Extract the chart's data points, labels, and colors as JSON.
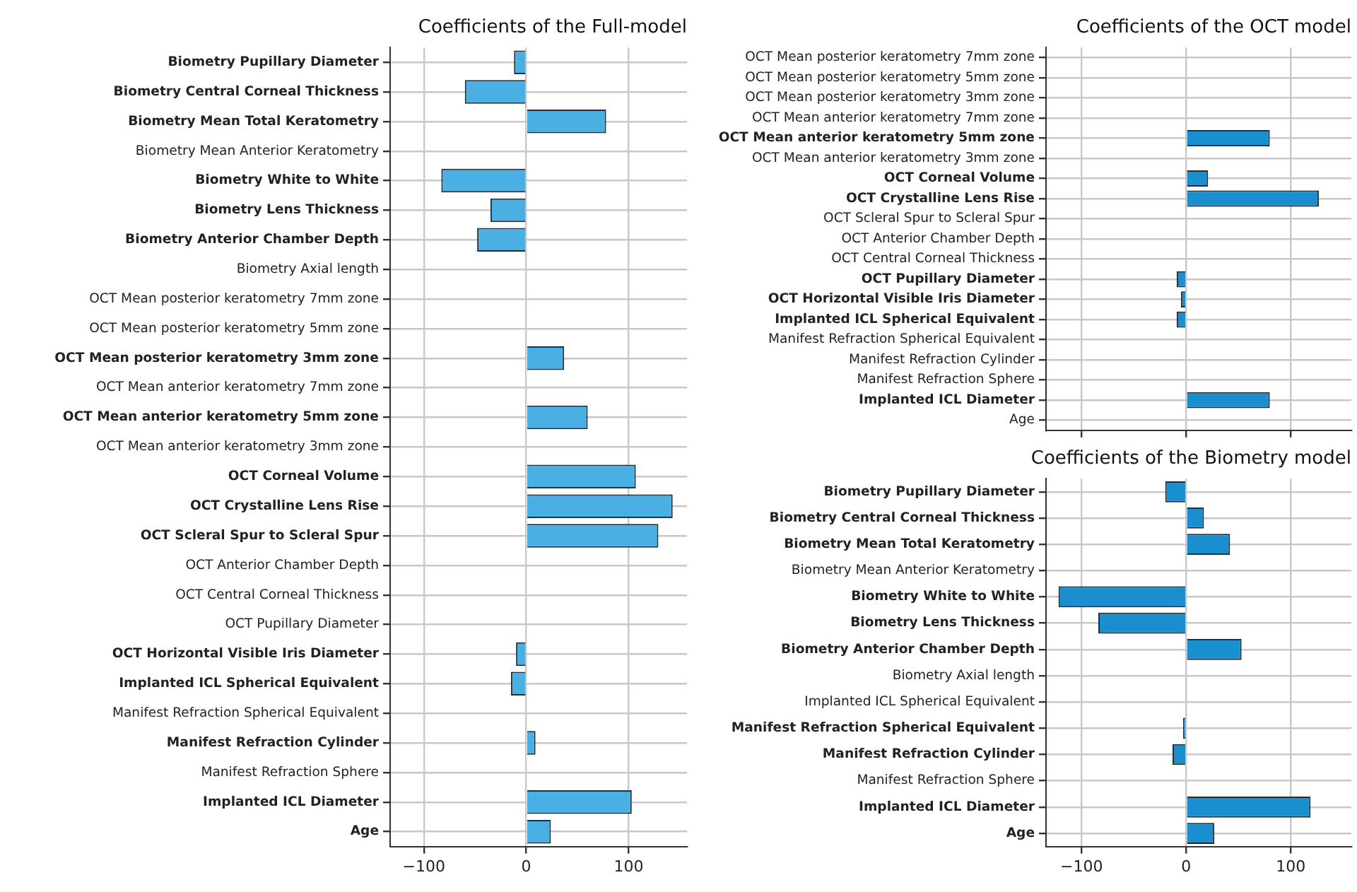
{
  "chart_data": [
    {
      "type": "bar",
      "orientation": "horizontal",
      "title": "Coefficients of the Full-model",
      "categories": [
        "Biometry Pupillary Diameter",
        "Biometry Central Corneal Thickness",
        "Biometry Mean Total Keratometry",
        "Biometry Mean Anterior Keratometry",
        "Biometry White to White",
        "Biometry Lens Thickness",
        "Biometry Anterior Chamber Depth",
        "Biometry Axial length",
        "OCT Mean posterior keratometry 7mm zone",
        "OCT Mean posterior keratometry 5mm zone",
        "OCT Mean posterior keratometry 3mm zone",
        "OCT Mean anterior keratometry 7mm zone",
        "OCT Mean anterior keratometry 5mm zone",
        "OCT Mean anterior keratometry 3mm zone",
        "OCT Corneal Volume",
        "OCT Crystalline Lens Rise",
        "OCT Scleral Spur to Scleral Spur",
        "OCT Anterior Chamber Depth",
        "OCT Central Corneal Thickness",
        "OCT Pupillary Diameter",
        "OCT Horizontal Visible Iris Diameter",
        "Implanted ICL Spherical Equivalent",
        "Manifest Refraction Spherical Equivalent",
        "Manifest Refraction Cylinder",
        "Manifest Refraction Sphere",
        "Implanted ICL Diameter",
        "Age"
      ],
      "values": [
        -12,
        -60,
        78,
        0,
        -83,
        -35,
        -48,
        0,
        0,
        0,
        37,
        0,
        60,
        0,
        107,
        143,
        129,
        0,
        0,
        0,
        -10,
        -15,
        0,
        9,
        0,
        103,
        24
      ],
      "color": "#4ab0e4",
      "xlim": [
        -133,
        157
      ],
      "xticks": [
        -100,
        0,
        100
      ],
      "grid": true
    },
    {
      "type": "bar",
      "orientation": "horizontal",
      "title": "Coefficients of the OCT model",
      "categories": [
        "OCT Mean posterior keratometry 7mm zone",
        "OCT Mean posterior keratometry 5mm zone",
        "OCT Mean posterior keratometry 3mm zone",
        "OCT Mean anterior keratometry 7mm zone",
        "OCT Mean anterior keratometry 5mm zone",
        "OCT Mean anterior keratometry 3mm zone",
        "OCT Corneal Volume",
        "OCT Crystalline Lens Rise",
        "OCT Scleral Spur to Scleral Spur",
        "OCT Anterior Chamber Depth",
        "OCT Central Corneal Thickness",
        "OCT Pupillary Diameter",
        "OCT Horizontal Visible Iris Diameter",
        "Implanted ICL Spherical Equivalent",
        "Manifest Refraction Spherical Equivalent",
        "Manifest Refraction Cylinder",
        "Manifest Refraction Sphere",
        "Implanted ICL Diameter",
        "Age"
      ],
      "values": [
        0,
        0,
        0,
        0,
        80,
        0,
        21,
        127,
        0,
        0,
        0,
        -9,
        -5,
        -9,
        0,
        0,
        0,
        80,
        0
      ],
      "color": "#1a8fcf",
      "xlim": [
        -134,
        158
      ],
      "xticks": [
        -100,
        0,
        100
      ],
      "grid": true,
      "tick_labels": "y"
    },
    {
      "type": "bar",
      "orientation": "horizontal",
      "title": "Coefficients of the Biometry model",
      "categories": [
        "Biometry Pupillary Diameter",
        "Biometry Central Corneal Thickness",
        "Biometry Mean Total Keratometry",
        "Biometry Mean Anterior Keratometry",
        "Biometry White to White",
        "Biometry Lens Thickness",
        "Biometry Anterior Chamber Depth",
        "Biometry Axial length",
        "Implanted ICL Spherical Equivalent",
        "Manifest Refraction Spherical Equivalent",
        "Manifest Refraction Cylinder",
        "Manifest Refraction Sphere",
        "Implanted ICL Diameter",
        "Age"
      ],
      "values": [
        -20,
        17,
        42,
        0,
        -122,
        -84,
        53,
        0,
        0,
        -3,
        -13,
        0,
        119,
        27
      ],
      "color": "#1a8fcf",
      "xlim": [
        -134,
        158
      ],
      "xticks": [
        -100,
        0,
        100
      ],
      "grid": true
    }
  ]
}
